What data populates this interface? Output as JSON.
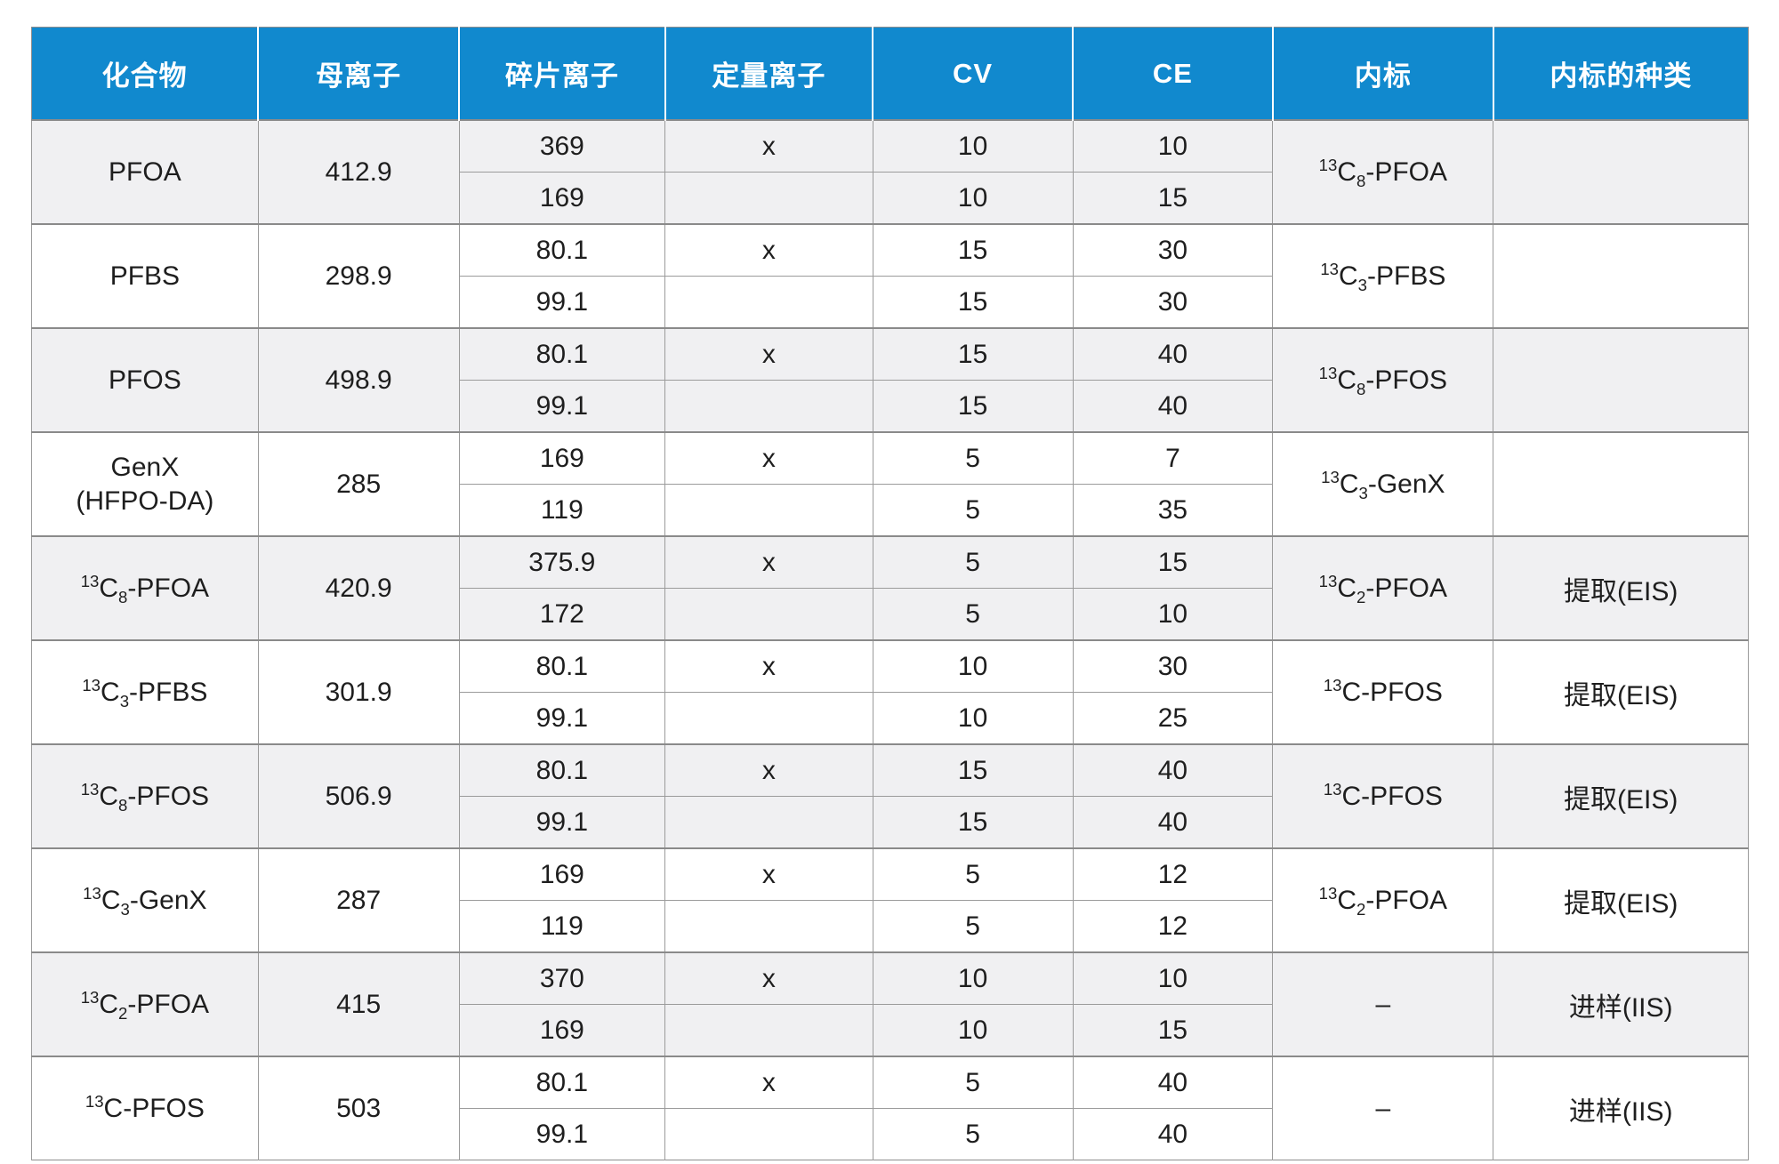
{
  "colors": {
    "header_bg": "#1189CE",
    "header_text": "#FFFFFF",
    "row_bg": "#FFFFFF",
    "row_alt_bg": "#F0F0F2",
    "grid": "#9B9B9B",
    "group_grid": "#8A8A8A",
    "text": "#1E1E1E"
  },
  "chart_data": {
    "type": "table",
    "title": "",
    "columns": [
      "化合物",
      "母离子",
      "碎片离子",
      "定量离子",
      "CV",
      "CE",
      "内标",
      "内标的种类"
    ],
    "rows": [
      {
        "compound": "PFOA",
        "precursor": "412.9",
        "fragments": [
          {
            "ion": "369",
            "quant": "x",
            "cv": "10",
            "ce": "10"
          },
          {
            "ion": "169",
            "quant": "",
            "cv": "10",
            "ce": "15"
          }
        ],
        "istd": "^{13}C_{8}-PFOA",
        "istd_type": ""
      },
      {
        "compound": "PFBS",
        "precursor": "298.9",
        "fragments": [
          {
            "ion": "80.1",
            "quant": "x",
            "cv": "15",
            "ce": "30"
          },
          {
            "ion": "99.1",
            "quant": "",
            "cv": "15",
            "ce": "30"
          }
        ],
        "istd": "^{13}C_{3}-PFBS",
        "istd_type": ""
      },
      {
        "compound": "PFOS",
        "precursor": "498.9",
        "fragments": [
          {
            "ion": "80.1",
            "quant": "x",
            "cv": "15",
            "ce": "40"
          },
          {
            "ion": "99.1",
            "quant": "",
            "cv": "15",
            "ce": "40"
          }
        ],
        "istd": "^{13}C_{8}-PFOS",
        "istd_type": ""
      },
      {
        "compound": "GenX\n(HFPO-DA)",
        "precursor": "285",
        "fragments": [
          {
            "ion": "169",
            "quant": "x",
            "cv": "5",
            "ce": "7"
          },
          {
            "ion": "119",
            "quant": "",
            "cv": "5",
            "ce": "35"
          }
        ],
        "istd": "^{13}C_{3}-GenX",
        "istd_type": ""
      },
      {
        "compound": "^{13}C_{8}-PFOA",
        "precursor": "420.9",
        "fragments": [
          {
            "ion": "375.9",
            "quant": "x",
            "cv": "5",
            "ce": "15"
          },
          {
            "ion": "172",
            "quant": "",
            "cv": "5",
            "ce": "10"
          }
        ],
        "istd": "^{13}C_{2}-PFOA",
        "istd_type": "提取(EIS)"
      },
      {
        "compound": "^{13}C_{3}-PFBS",
        "precursor": "301.9",
        "fragments": [
          {
            "ion": "80.1",
            "quant": "x",
            "cv": "10",
            "ce": "30"
          },
          {
            "ion": "99.1",
            "quant": "",
            "cv": "10",
            "ce": "25"
          }
        ],
        "istd": "^{13}C-PFOS",
        "istd_type": "提取(EIS)"
      },
      {
        "compound": "^{13}C_{8}-PFOS",
        "precursor": "506.9",
        "fragments": [
          {
            "ion": "80.1",
            "quant": "x",
            "cv": "15",
            "ce": "40"
          },
          {
            "ion": "99.1",
            "quant": "",
            "cv": "15",
            "ce": "40"
          }
        ],
        "istd": "^{13}C-PFOS",
        "istd_type": "提取(EIS)"
      },
      {
        "compound": "^{13}C_{3}-GenX",
        "precursor": "287",
        "fragments": [
          {
            "ion": "169",
            "quant": "x",
            "cv": "5",
            "ce": "12"
          },
          {
            "ion": "119",
            "quant": "",
            "cv": "5",
            "ce": "12"
          }
        ],
        "istd": "^{13}C_{2}-PFOA",
        "istd_type": "提取(EIS)"
      },
      {
        "compound": "^{13}C_{2}-PFOA",
        "precursor": "415",
        "fragments": [
          {
            "ion": "370",
            "quant": "x",
            "cv": "10",
            "ce": "10"
          },
          {
            "ion": "169",
            "quant": "",
            "cv": "10",
            "ce": "15"
          }
        ],
        "istd": "–",
        "istd_type": "进样(IIS)"
      },
      {
        "compound": "^{13}C-PFOS",
        "precursor": "503",
        "fragments": [
          {
            "ion": "80.1",
            "quant": "x",
            "cv": "5",
            "ce": "40"
          },
          {
            "ion": "99.1",
            "quant": "",
            "cv": "5",
            "ce": "40"
          }
        ],
        "istd": "–",
        "istd_type": "进样(IIS)"
      }
    ]
  }
}
